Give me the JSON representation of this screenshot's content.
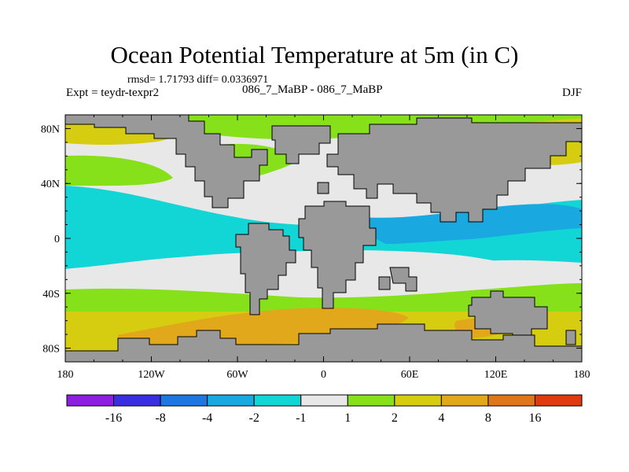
{
  "title": "Ocean Potential Temperature at 5m (in C)",
  "stats": "rmsd= 1.71793 diff= 0.0336971",
  "experiment": "Expt = teydr-texpr2",
  "subtitle": "086_7_MaBP - 086_7_MaBP",
  "season": "DJF",
  "colors": {
    "land": "#999999",
    "levels": [
      "#8c1fe0",
      "#3a2fe0",
      "#1e76e0",
      "#1aa8e0",
      "#12d6d6",
      "#e8e8e8",
      "#86e01a",
      "#d6cc10",
      "#e0a81a",
      "#e0761a",
      "#e03a10"
    ]
  },
  "chart_data": {
    "type": "contour-map",
    "variable": "Ocean Potential Temperature at 5m",
    "units": "C",
    "x_ticks": [
      "180",
      "120W",
      "60W",
      "0",
      "60E",
      "120E",
      "180"
    ],
    "x_values": [
      -180,
      -120,
      -60,
      0,
      60,
      120,
      180
    ],
    "y_ticks": [
      "80N",
      "40N",
      "0",
      "40S",
      "80S"
    ],
    "y_values": [
      80,
      40,
      0,
      -40,
      -80
    ],
    "xlim": [
      -180,
      180
    ],
    "ylim": [
      -90,
      90
    ],
    "colorbar": {
      "labels": [
        "-16",
        "-8",
        "-4",
        "-2",
        "-1",
        "1",
        "2",
        "4",
        "8",
        "16"
      ],
      "boundaries": [
        -16,
        -8,
        -4,
        -2,
        -1,
        1,
        2,
        4,
        8,
        16
      ]
    }
  }
}
